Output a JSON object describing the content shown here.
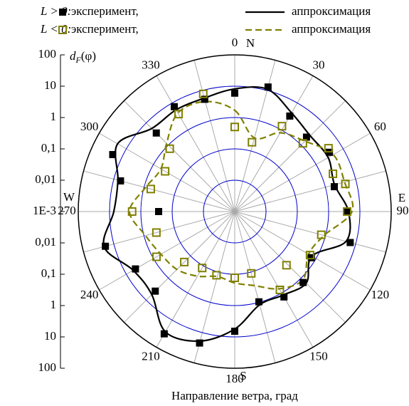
{
  "chart_data": {
    "type": "polar",
    "xlabel": "Направление ветра, град",
    "ylabel": {
      "base": "d",
      "sub": "F",
      "rest": "(φ)"
    },
    "legend_groups": [
      "L > 0:",
      "L < 0:"
    ],
    "compass_labels": [
      "N",
      "E",
      "S",
      "W"
    ],
    "xlim": [
      0,
      360
    ],
    "xticks": [
      0,
      30,
      60,
      90,
      120,
      150,
      180,
      210,
      240,
      270,
      300,
      330
    ],
    "angle_grid_step": 15,
    "rscale": "log",
    "ylim": [
      0.001,
      100
    ],
    "yticks": [
      100,
      10,
      1,
      {
        "value": 0.1,
        "label": "0,1"
      },
      {
        "value": 0.01,
        "label": "0,01"
      },
      {
        "value": 0.001,
        "label": "1E-3"
      }
    ],
    "series": [
      {
        "name": "эксперимент,",
        "kind": "markers",
        "group": 0,
        "color": "#000000",
        "filled": true,
        "theta": [
          0,
          15,
          30,
          44,
          58,
          76,
          90,
          105,
          121,
          136,
          150,
          165,
          180,
          195,
          210,
          225,
          240,
          255,
          270,
          285,
          295,
          315,
          330,
          345
        ],
        "values": [
          6,
          13,
          3.3,
          2,
          3.7,
          1.9,
          3.7,
          6.6,
          0.72,
          1.4,
          1.4,
          0.96,
          6.6,
          22,
          32,
          3.9,
          4.6,
          19,
          0.27,
          6,
          20,
          3.5,
          7.3,
          5.1
        ]
      },
      {
        "name": "аппроксимация",
        "kind": "curve",
        "group": 0,
        "color": "#000000",
        "dashed": false,
        "theta": [
          0,
          15,
          30,
          45,
          60,
          75,
          90,
          105,
          120,
          135,
          150,
          165,
          180,
          195,
          210,
          225,
          240,
          255,
          270,
          285,
          300,
          315,
          330,
          345
        ],
        "values": [
          8.2,
          11,
          4.3,
          2.6,
          2.8,
          2,
          4.3,
          4.8,
          0.7,
          1.7,
          1.2,
          1.2,
          5.6,
          19,
          27,
          5.6,
          5.6,
          21,
          7.3,
          7.3,
          21,
          5.6,
          5.6,
          5.6
        ]
      },
      {
        "name": "эксперимент,",
        "kind": "markers",
        "group": 1,
        "color": "#808000",
        "filled": false,
        "theta": [
          0,
          14,
          29,
          45,
          56,
          69,
          76,
          90,
          105,
          120,
          136,
          150,
          165,
          180,
          196,
          210,
          225,
          240,
          255,
          270,
          285,
          300,
          314,
          330,
          345
        ],
        "values": [
          0.5,
          0.19,
          1.3,
          1.2,
          4.1,
          2.3,
          4.4,
          3.9,
          0.73,
          0.6,
          0.24,
          0.77,
          0.11,
          0.13,
          0.13,
          0.12,
          0.19,
          0.77,
          0.39,
          1.9,
          0.6,
          0.37,
          0.77,
          3.9,
          7.7
        ]
      },
      {
        "name": "аппроксимация",
        "kind": "curve",
        "group": 1,
        "color": "#808000",
        "dashed": true,
        "theta": [
          0,
          15,
          30,
          45,
          60,
          75,
          90,
          105,
          120,
          135,
          150,
          165,
          180,
          195,
          210,
          225,
          240,
          255,
          270,
          285,
          300,
          315,
          330,
          345
        ],
        "values": [
          1.7,
          0.27,
          0.8,
          1.5,
          4.3,
          4.3,
          5.6,
          0.9,
          0.53,
          1.2,
          0.7,
          0.28,
          0.19,
          0.14,
          0.24,
          0.41,
          0.53,
          0.9,
          2.3,
          0.9,
          0.53,
          1.2,
          4.3,
          4.3
        ]
      }
    ]
  }
}
